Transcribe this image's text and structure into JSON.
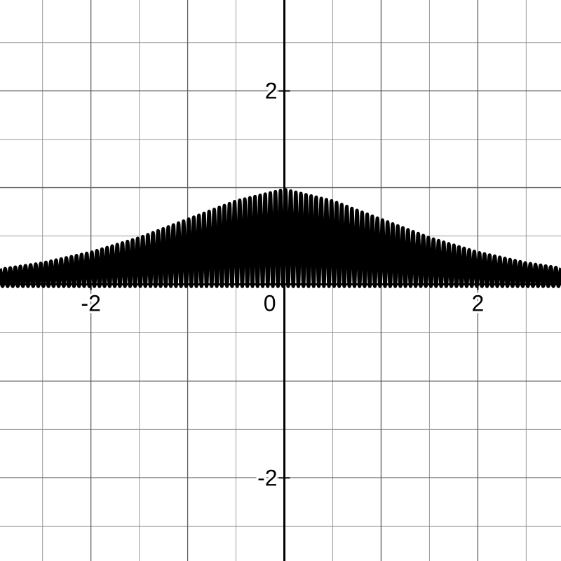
{
  "chart_data": {
    "type": "line",
    "title": "",
    "xlabel": "",
    "ylabel": "",
    "xlim": [
      -2.94,
      2.86
    ],
    "ylim": [
      -2.86,
      2.94
    ],
    "grid": true,
    "x_ticks": [
      {
        "value": -2,
        "label": "-2"
      },
      {
        "value": 0,
        "label": "0"
      },
      {
        "value": 2,
        "label": "2"
      }
    ],
    "y_ticks": [
      {
        "value": 2,
        "label": "2"
      },
      {
        "value": -2,
        "label": "-2"
      }
    ],
    "minor_grid_step": 0.5,
    "major_grid_step": 1,
    "series": [
      {
        "color": "#000000",
        "description_points": {
          "x": [
            -2.9,
            -2.5,
            -2.0,
            -1.5,
            -1.0,
            -0.5,
            0.0,
            0.5,
            1.0,
            1.5,
            2.0,
            2.5,
            2.9
          ],
          "y_max": [
            0.16,
            0.22,
            0.33,
            0.48,
            0.67,
            0.86,
            0.98,
            0.86,
            0.67,
            0.48,
            0.33,
            0.22,
            0.16
          ],
          "y_min": [
            -0.02,
            -0.02,
            -0.02,
            -0.02,
            -0.02,
            -0.02,
            -0.02,
            -0.02,
            -0.02,
            -0.02,
            -0.02,
            -0.02,
            -0.02
          ]
        },
        "oscillation_count": 110
      }
    ]
  }
}
